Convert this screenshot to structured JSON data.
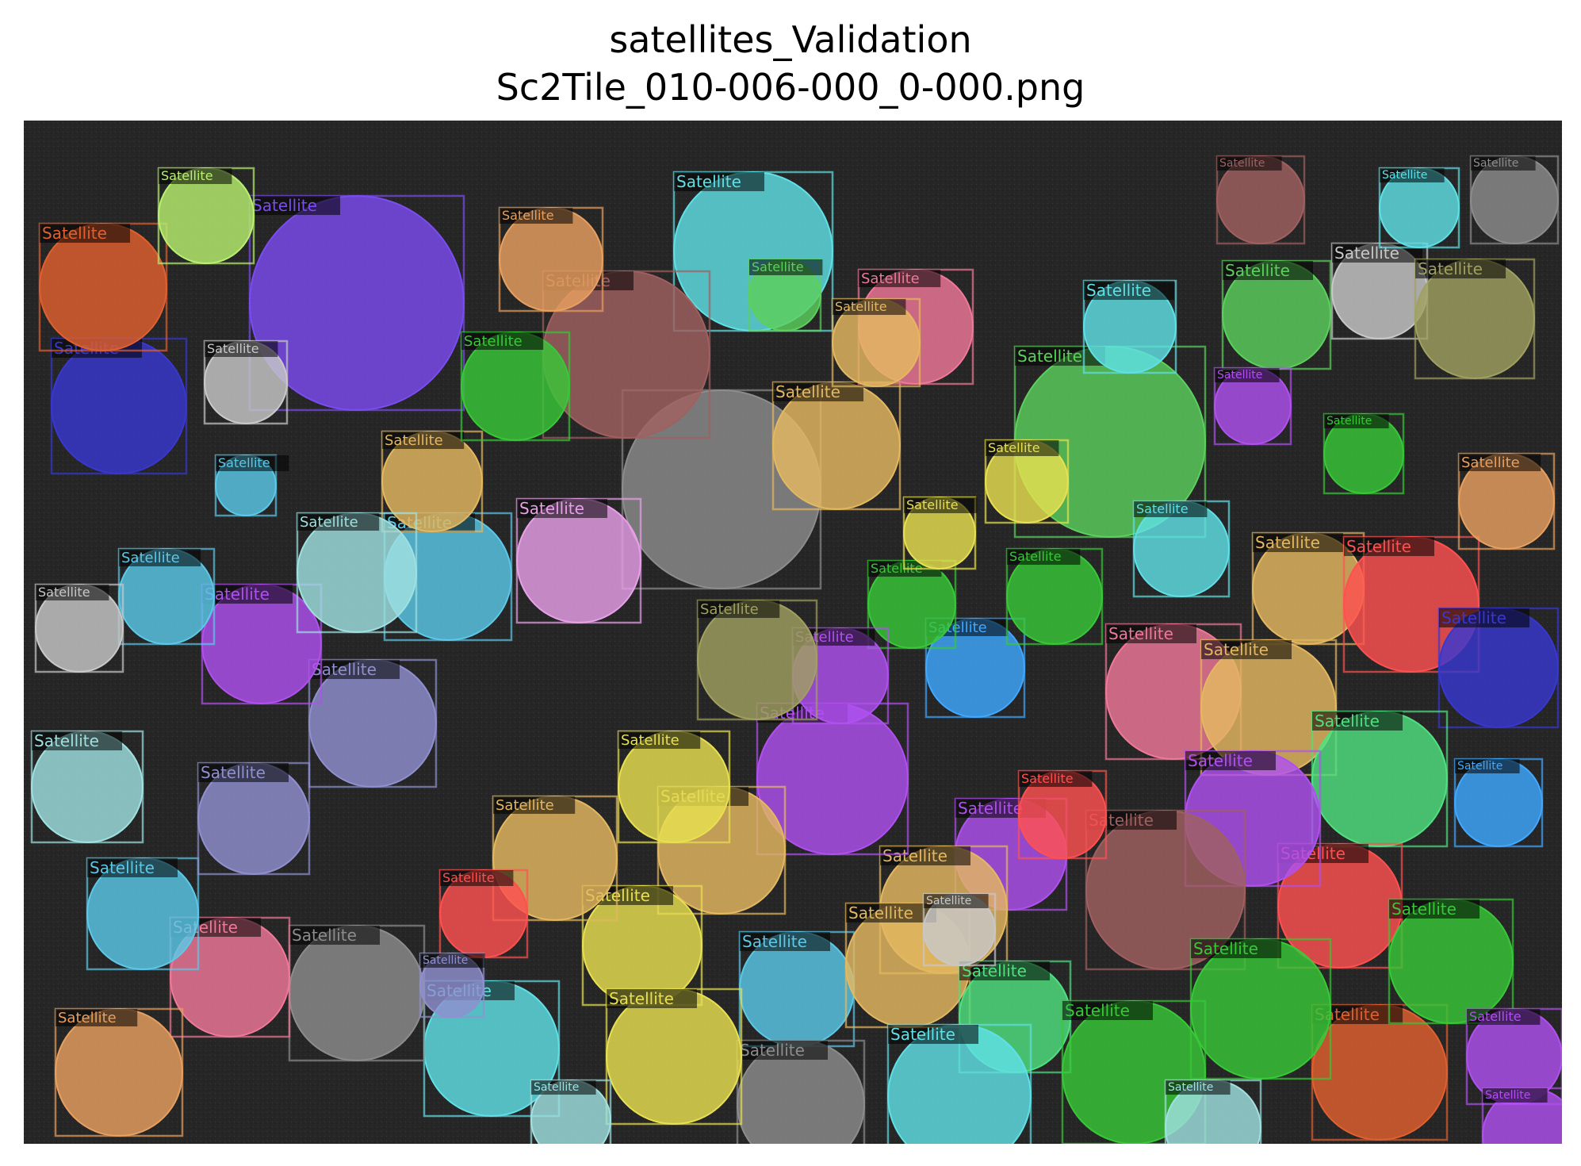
{
  "figure": {
    "title_line1": "satellites_Validation",
    "title_line2": "Sc2Tile_010-006-000_0-000.png"
  },
  "annotations": {
    "class_label": "Satellite",
    "instances": [
      {
        "color": "#7b4cf0",
        "label": "Satellite"
      },
      {
        "color": "#8c8c8c",
        "label": ""
      },
      {
        "color": "#5fe0e6",
        "label": "Satellite"
      },
      {
        "color": "#a06060",
        "label": "Satellite"
      },
      {
        "color": "#5cd05c",
        "label": "Satellite"
      },
      {
        "color": "#e4b860",
        "label": "Satellite"
      },
      {
        "color": "#e8a0e8",
        "label": "Satellite"
      },
      {
        "color": "#5cc8e8",
        "label": "Satellite"
      },
      {
        "color": "#e8a060",
        "label": "Satellite"
      },
      {
        "color": "#f07898",
        "label": "Satellite"
      },
      {
        "color": "#e8e050",
        "label": "Satellite"
      },
      {
        "color": "#40a8ff",
        "label": "Satellite"
      },
      {
        "color": "#b050f0",
        "label": "Satellite"
      },
      {
        "color": "#b8f070",
        "label": "Satellite"
      },
      {
        "color": "#38c838",
        "label": "Satellite"
      },
      {
        "color": "#9090d0",
        "label": "Satellite"
      },
      {
        "color": "#c8c8c8",
        "label": "Satellite"
      },
      {
        "color": "#ff5050",
        "label": "Satellite"
      },
      {
        "color": "#3838d0",
        "label": "Satellite"
      },
      {
        "color": "#a0a060",
        "label": "Satellite"
      },
      {
        "color": "#50e080",
        "label": "Satellite"
      },
      {
        "color": "#e06030",
        "label": "Satellite"
      },
      {
        "color": "#a0e0e0",
        "label": "Satellite"
      },
      {
        "color": "#9040c0",
        "label": "Satellite"
      }
    ]
  }
}
